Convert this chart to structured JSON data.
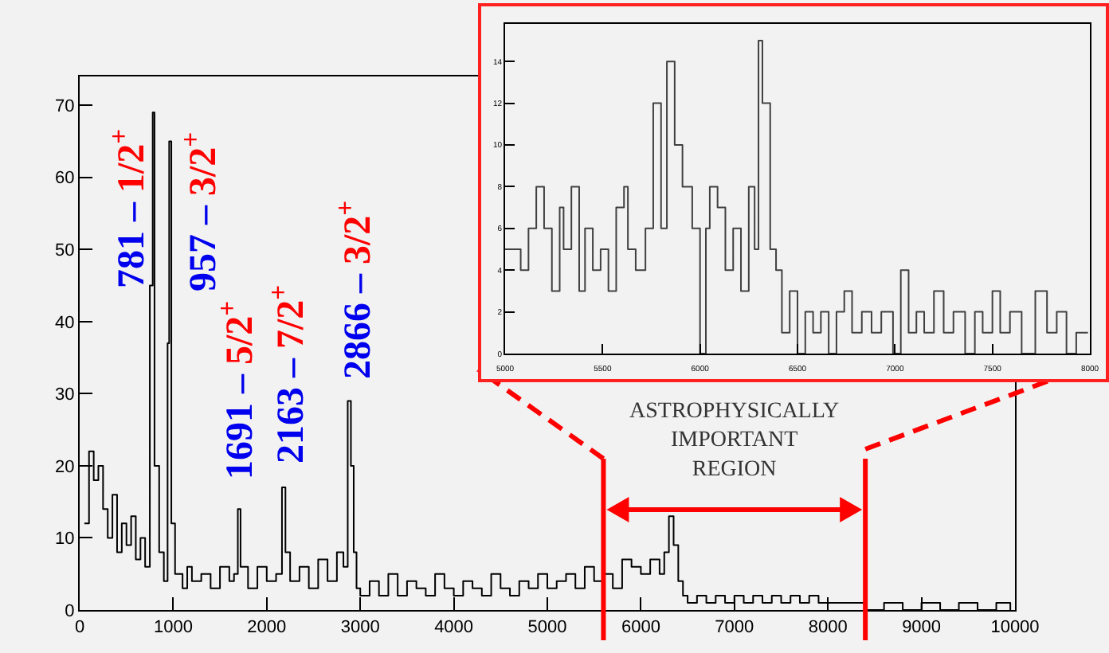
{
  "chart_data": [
    {
      "type": "step",
      "color": "#000000",
      "xlim": [
        0,
        10000
      ],
      "ylim": [
        0,
        74
      ],
      "xticks": [
        0,
        1000,
        2000,
        3000,
        4000,
        5000,
        6000,
        7000,
        8000,
        9000,
        10000
      ],
      "yticks": [
        0,
        10,
        20,
        30,
        40,
        50,
        60,
        70
      ],
      "x": [
        50,
        100,
        150,
        200,
        250,
        300,
        350,
        400,
        450,
        500,
        550,
        600,
        650,
        700,
        750,
        781,
        800,
        850,
        900,
        940,
        957,
        980,
        1020,
        1100,
        1150,
        1200,
        1300,
        1400,
        1500,
        1600,
        1650,
        1691,
        1720,
        1800,
        1900,
        2000,
        2100,
        2163,
        2200,
        2250,
        2350,
        2450,
        2550,
        2650,
        2750,
        2820,
        2866,
        2900,
        2930,
        2960,
        3000,
        3100,
        3200,
        3300,
        3400,
        3500,
        3600,
        3700,
        3800,
        3900,
        4000,
        4100,
        4200,
        4300,
        4400,
        4500,
        4600,
        4700,
        4800,
        4900,
        5000,
        5100,
        5200,
        5300,
        5400,
        5500,
        5600,
        5700,
        5800,
        5900,
        6000,
        6100,
        6200,
        6250,
        6300,
        6350,
        6400,
        6450,
        6500,
        6600,
        6700,
        6800,
        6900,
        7000,
        7100,
        7200,
        7300,
        7400,
        7500,
        7600,
        7700,
        7800,
        7900,
        8000,
        8200,
        8400,
        8600,
        8800,
        9000,
        9200,
        9400,
        9600,
        9800,
        9950
      ],
      "values": [
        12,
        22,
        18,
        20,
        14,
        10,
        16,
        8,
        12,
        9,
        13,
        7,
        10,
        6,
        45,
        69,
        20,
        8,
        4,
        37,
        65,
        12,
        5,
        3,
        6,
        4,
        5,
        3,
        6,
        4,
        5,
        14,
        6,
        3,
        6,
        4,
        5,
        17,
        8,
        4,
        6,
        3,
        7,
        4,
        8,
        6,
        29,
        20,
        8,
        3,
        2,
        4,
        2,
        5,
        2,
        4,
        3,
        2,
        5,
        3,
        2,
        4,
        3,
        2,
        5,
        3,
        2,
        4,
        3,
        5,
        3,
        4,
        5,
        3,
        6,
        4,
        5,
        3,
        7,
        6,
        5,
        7,
        5,
        8,
        13,
        9,
        4,
        2,
        1,
        2,
        1,
        2,
        1,
        2,
        1,
        2,
        1,
        2,
        1,
        2,
        1,
        2,
        1,
        1,
        1,
        0,
        1,
        0,
        1,
        0,
        1,
        0,
        1,
        0
      ],
      "annotations": [
        "781 – 1/2$^{+}$",
        "957 – 3/2$^{+}$",
        "1691 – 5/2$^{+}$",
        "2163 – 7/2$^{+}$",
        "2866 – 3/2$^{+}$",
        "ASTROPHYSICALLY\nIMPORTANT\nREGION"
      ],
      "ref_lines": [
        {
          "axis": "x",
          "value": 5600,
          "color": "#ff0000"
        },
        {
          "axis": "x",
          "value": 8400,
          "color": "#ff0000"
        }
      ]
    },
    {
      "type": "step",
      "color": "#404040",
      "xlim": [
        5000,
        8000
      ],
      "ylim": [
        0,
        15.8
      ],
      "xticks": [
        5000,
        5500,
        6000,
        6500,
        7000,
        7500,
        8000
      ],
      "yticks": [
        0,
        2,
        4,
        6,
        8,
        10,
        12,
        14
      ],
      "x": [
        5000,
        5080,
        5120,
        5160,
        5200,
        5240,
        5280,
        5300,
        5340,
        5380,
        5410,
        5450,
        5490,
        5530,
        5570,
        5610,
        5630,
        5670,
        5720,
        5760,
        5800,
        5830,
        5870,
        5910,
        5960,
        6000,
        6030,
        6050,
        6090,
        6130,
        6170,
        6210,
        6250,
        6280,
        6300,
        6320,
        6360,
        6390,
        6420,
        6460,
        6500,
        6540,
        6580,
        6620,
        6660,
        6700,
        6740,
        6780,
        6830,
        6880,
        6930,
        6990,
        7030,
        7070,
        7110,
        7150,
        7200,
        7250,
        7300,
        7360,
        7410,
        7450,
        7500,
        7540,
        7590,
        7650,
        7720,
        7780,
        7830,
        7880,
        7930,
        7990
      ],
      "values": [
        5,
        4,
        6,
        8,
        6,
        3,
        7,
        5,
        8,
        3,
        6,
        4,
        5,
        3,
        7,
        8,
        5,
        4,
        6,
        12,
        6,
        14,
        10,
        8,
        6,
        0,
        6,
        8,
        7,
        4,
        6,
        3,
        8,
        5,
        15,
        12,
        5,
        4,
        1,
        3,
        0,
        2,
        1,
        2,
        0,
        2,
        3,
        1,
        2,
        1,
        2,
        0,
        4,
        1,
        2,
        1,
        3,
        1,
        2,
        0,
        2,
        1,
        3,
        1,
        2,
        0,
        3,
        1,
        2,
        0,
        1,
        1
      ]
    }
  ]
}
